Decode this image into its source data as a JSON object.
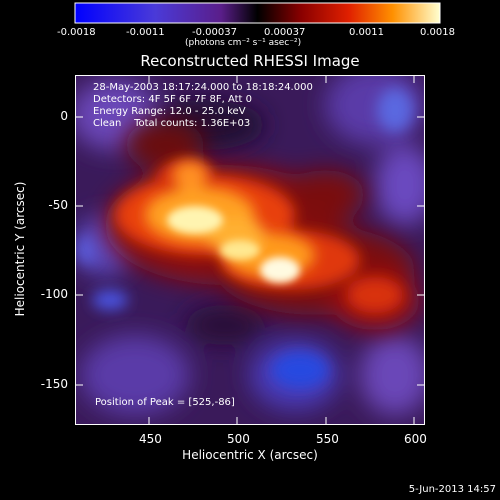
{
  "colorbar": {
    "ticks": [
      "-0.0018",
      "-0.0011",
      "-0.00037",
      "0.00037",
      "0.0011",
      "0.0018"
    ],
    "units": "(photons cm⁻² s⁻¹ asec⁻²)"
  },
  "plot": {
    "title": "Reconstructed RHESSI Image",
    "info_lines": [
      "28-May-2003 18:17:24.000 to 18:18:24.000",
      "Detectors: 4F 5F 6F 7F 8F, Att 0",
      "Energy Range: 12.0 - 25.0 keV",
      "Clean    Total counts: 1.36E+03"
    ],
    "peak_text": "Position of Peak = [525,-86]",
    "xlabel": "Heliocentric X (arcsec)",
    "ylabel": "Heliocentric Y (arcsec)",
    "x_ticks": [
      "450",
      "500",
      "550",
      "600"
    ],
    "y_ticks": [
      "0",
      "-50",
      "-100",
      "-150"
    ]
  },
  "footer": {
    "date": "5-Jun-2013 14:57"
  }
}
